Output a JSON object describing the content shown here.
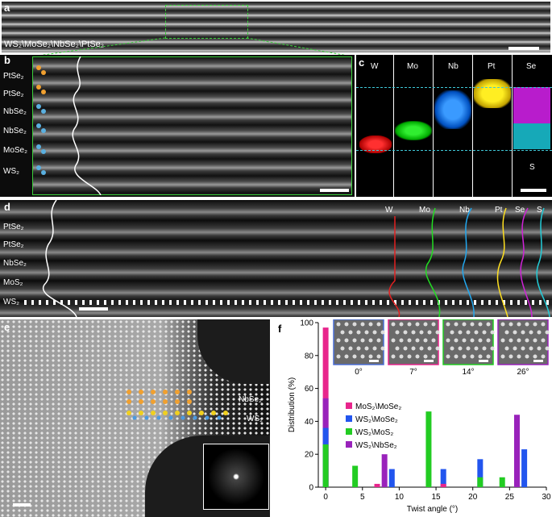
{
  "panels": {
    "a": {
      "letter": "a",
      "label": "WS₂\\MoSe₂\\NbSe₂\\PtSe₂"
    },
    "b": {
      "letter": "b",
      "layers": [
        "PtSe₂",
        "PtSe₂",
        "NbSe₂",
        "NbSe₂",
        "MoSe₂",
        "WS₂"
      ]
    },
    "c": {
      "letter": "c",
      "elements": [
        "W",
        "Mo",
        "Nb",
        "Pt",
        "Se"
      ],
      "extra_label": "S",
      "colors": {
        "W": "#ff2a2a",
        "Mo": "#2ee82e",
        "Nb": "#2a8cff",
        "Pt": "#ffe61a",
        "Se": "#c81ed6",
        "S": "#1ab8c8"
      }
    },
    "d": {
      "letter": "d",
      "layers": [
        "PtSe₂",
        "PtSe₂",
        "NbSe₂",
        "MoS₂",
        "WS₂"
      ],
      "profiles": [
        "W",
        "Mo",
        "Nb",
        "Pt",
        "Se",
        "S"
      ]
    },
    "e": {
      "letter": "e",
      "labels": [
        "NbSe₂",
        "WS₂"
      ]
    },
    "f": {
      "letter": "f"
    }
  },
  "chart_data": {
    "type": "bar",
    "xlabel": "Twist angle (°)",
    "ylabel": "Distribution (%)",
    "xlim": [
      -1,
      30
    ],
    "ylim": [
      0,
      100
    ],
    "xticks": [
      0,
      5,
      10,
      15,
      20,
      25,
      30
    ],
    "yticks": [
      0,
      20,
      40,
      60,
      80,
      100
    ],
    "legend": "center-right",
    "series": [
      {
        "name": "MoS₂\\MoSe₂",
        "color": "#e8258c",
        "x": [
          0,
          7,
          16
        ],
        "values": [
          97,
          2,
          2
        ]
      },
      {
        "name": "WS₂\\MoSe₂",
        "color": "#2255ee",
        "x": [
          0,
          9,
          16,
          21,
          27
        ],
        "values": [
          36,
          11,
          11,
          17,
          23
        ]
      },
      {
        "name": "WS₂\\MoS₂",
        "color": "#22cc22",
        "x": [
          0,
          4,
          14,
          21,
          24
        ],
        "values": [
          26,
          13,
          46,
          6,
          6
        ]
      },
      {
        "name": "WS₂\\NbSe₂",
        "color": "#9922bb",
        "x": [
          0,
          8,
          26
        ],
        "values": [
          54,
          20,
          44
        ]
      }
    ],
    "insets": [
      {
        "label": "0°",
        "border": "#4b6fd6"
      },
      {
        "label": "7°",
        "border": "#e8258c"
      },
      {
        "label": "14°",
        "border": "#22cc22"
      },
      {
        "label": "26°",
        "border": "#9922bb"
      }
    ]
  }
}
